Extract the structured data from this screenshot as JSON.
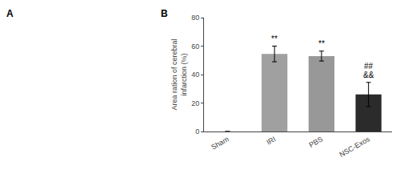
{
  "chart_data": {
    "type": "bar",
    "categories": [
      "Sham",
      "IRI",
      "PBS",
      "NSC-Exos"
    ],
    "values": [
      0,
      54.5,
      53.0,
      26.0
    ],
    "errors": [
      0,
      5.5,
      3.5,
      8.5
    ],
    "colors": [
      "#b2b2b2",
      "#a0a0a0",
      "#989898",
      "#2b2b2b"
    ],
    "ylabel": "Area ration of cerebral\ninfarction (%)",
    "ylim": [
      0,
      80
    ],
    "yticks": [
      0,
      20,
      40,
      60,
      80
    ],
    "grid": false,
    "annotations": [
      {
        "category": "IRI",
        "text": "**"
      },
      {
        "category": "PBS",
        "text": "**"
      },
      {
        "category": "NSC-Exos",
        "text": "&&"
      },
      {
        "category": "NSC-Exos",
        "text": "##"
      }
    ],
    "panel_labels": [
      "A",
      "B"
    ]
  }
}
